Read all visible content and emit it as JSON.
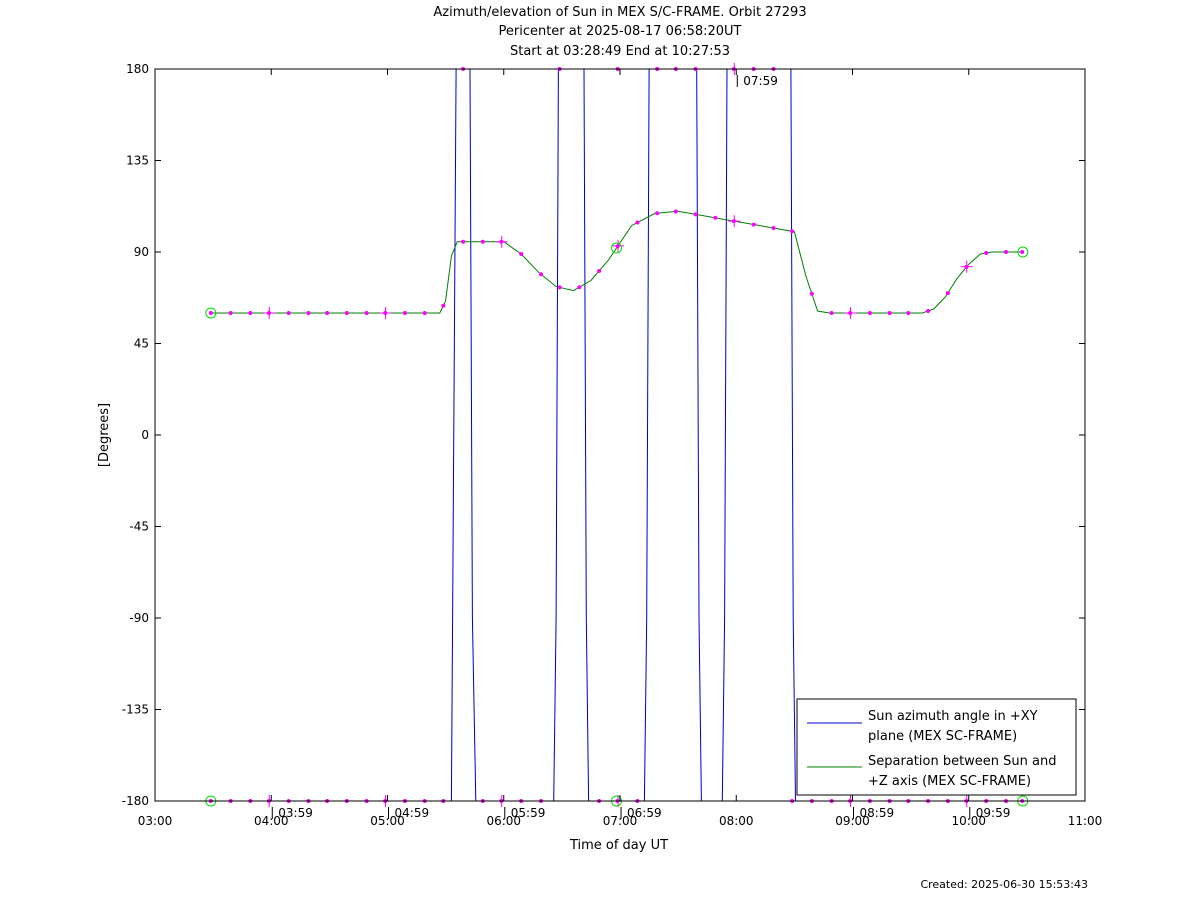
{
  "header": {
    "title_line1": "Azimuth/elevation of Sun in MEX S/C-FRAME.  Orbit 27293",
    "title_line2": "Pericenter at 2025-08-17 06:58:20UT",
    "title_line3": "Start at 03:28:49 End at 10:27:53"
  },
  "footer": {
    "created": "Created: 2025-06-30 15:53:43"
  },
  "chart_data": {
    "type": "line",
    "title": "Azimuth/elevation of Sun in MEX S/C-FRAME.  Orbit 27293",
    "xlabel": "Time of day UT",
    "ylabel": "[Degrees]",
    "xlim": [
      3.0,
      11.0
    ],
    "ylim": [
      -180,
      180
    ],
    "x_ticks": [
      3,
      4,
      5,
      6,
      7,
      8,
      9,
      10,
      11
    ],
    "x_tick_labels": [
      "03:00",
      "04:00",
      "05:00",
      "06:00",
      "07:00",
      "08:00",
      "09:00",
      "10:00",
      "11:00"
    ],
    "y_ticks": [
      -180,
      -135,
      -90,
      -45,
      0,
      45,
      90,
      135,
      180
    ],
    "y_tick_labels": [
      "-180",
      "-135",
      "-90",
      "-45",
      "0",
      "45",
      "90",
      "135",
      "180"
    ],
    "grid": false,
    "legend": "bottom-right",
    "colors": {
      "azimuth": "#0000cc",
      "separation": "#008000",
      "marker": "#ff00ff",
      "endpoint": "#00dd00"
    },
    "series": [
      {
        "name": "Sun azimuth angle in +XY plane (MEX SC-FRAME)",
        "legend_line1": "Sun azimuth angle in +XY",
        "legend_line2": "plane (MEX SC-FRAME)",
        "x": [
          3.4803,
          5.55,
          5.56,
          5.59,
          5.71,
          5.73,
          5.76,
          6.43,
          6.45,
          6.47,
          6.69,
          6.71,
          6.73,
          7.21,
          7.23,
          7.25,
          7.66,
          7.68,
          7.7,
          7.88,
          7.9,
          7.92,
          8.47,
          8.49,
          8.51,
          10.4647
        ],
        "y": [
          -180,
          -180,
          -90,
          180,
          180,
          -90,
          -180,
          -180,
          -90,
          180,
          180,
          -90,
          -180,
          -180,
          -90,
          180,
          180,
          -90,
          -180,
          -180,
          -90,
          180,
          180,
          -90,
          -180,
          -180
        ]
      },
      {
        "name": "Separation between Sun and +Z axis (MEX SC-FRAME)",
        "legend_line1": "Separation between Sun and",
        "legend_line2": "+Z axis (MEX SC-FRAME)",
        "x": [
          3.4803,
          4.0,
          4.5,
          5.0,
          5.45,
          5.5,
          5.55,
          5.6,
          5.8,
          6.0,
          6.15,
          6.3,
          6.45,
          6.6,
          6.75,
          6.9,
          7.1,
          7.3,
          7.5,
          7.7,
          7.9,
          8.1,
          8.3,
          8.5,
          8.6,
          8.7,
          8.8,
          9.0,
          9.2,
          9.4,
          9.6,
          9.7,
          9.8,
          9.9,
          10.0,
          10.1,
          10.2,
          10.4647
        ],
        "y": [
          60,
          60,
          60,
          60,
          60,
          66,
          88,
          95,
          95,
          95,
          89,
          80,
          73,
          71,
          76,
          86,
          103,
          109,
          110,
          108,
          106,
          104,
          102,
          100,
          78,
          61,
          60,
          60,
          60,
          60,
          60,
          62,
          68,
          77,
          84,
          89,
          90,
          90
        ]
      }
    ],
    "markers": {
      "azimuth_bottom_x": [
        3.48,
        3.65,
        3.82,
        3.98,
        4.15,
        4.32,
        4.48,
        4.65,
        4.82,
        4.98,
        5.15,
        5.32,
        5.48,
        5.82,
        5.98,
        6.15,
        6.32,
        6.82,
        6.98,
        7.15,
        8.48,
        8.65,
        8.82,
        8.98,
        9.15,
        9.32,
        9.48,
        9.65,
        9.82,
        9.98,
        10.15,
        10.32,
        10.46
      ],
      "azimuth_top_x": [
        5.65,
        6.48,
        6.98,
        7.32,
        7.48,
        7.65,
        7.98,
        8.15,
        8.32
      ],
      "separation_x": [
        3.48,
        3.65,
        3.82,
        3.98,
        4.15,
        4.32,
        4.48,
        4.65,
        4.82,
        4.98,
        5.15,
        5.32,
        5.48,
        5.65,
        5.82,
        5.98,
        6.15,
        6.32,
        6.48,
        6.65,
        6.82,
        6.98,
        7.15,
        7.32,
        7.48,
        7.65,
        7.82,
        7.98,
        8.15,
        8.32,
        8.48,
        8.65,
        8.82,
        8.98,
        9.15,
        9.32,
        9.48,
        9.65,
        9.82,
        9.98,
        10.15,
        10.32,
        10.46
      ],
      "hour_cross_x": [
        3.983,
        4.983,
        5.983,
        6.983,
        7.983,
        8.983,
        9.983
      ],
      "endpoint_x": [
        3.4803,
        6.97,
        10.4647
      ]
    },
    "annotations": [
      {
        "text": "03:59",
        "x": 3.983,
        "y": -180
      },
      {
        "text": "04:59",
        "x": 4.983,
        "y": -180
      },
      {
        "text": "05:59",
        "x": 5.983,
        "y": -180
      },
      {
        "text": "06:59",
        "x": 6.983,
        "y": -180
      },
      {
        "text": "07:59",
        "x": 7.983,
        "y": 180
      },
      {
        "text": "08:59",
        "x": 8.983,
        "y": -180
      },
      {
        "text": "09:59",
        "x": 9.983,
        "y": -180
      }
    ]
  }
}
